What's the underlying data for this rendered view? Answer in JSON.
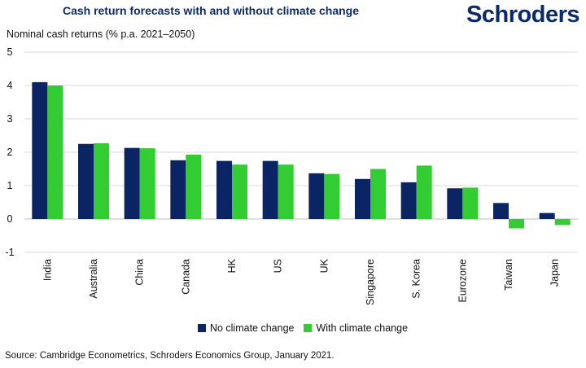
{
  "brand": "Schroders",
  "source": "Source: Cambridge Econometrics, Schroders Economics Group, January 2021.",
  "colors": {
    "no_climate": "#0b2463",
    "with_climate": "#33cc33",
    "grid": "#d9d9d9",
    "axis": "#bfbfbf"
  },
  "chart_data": {
    "type": "bar",
    "title": "Cash return forecasts with and without climate change",
    "ylabel": "Nominal cash returns (% p.a. 2021–2050)",
    "xlabel": "",
    "ylim": [
      -1,
      5
    ],
    "yticks": [
      -1,
      0,
      1,
      2,
      3,
      4,
      5
    ],
    "grid": true,
    "legend_position": "bottom",
    "categories": [
      "India",
      "Australia",
      "China",
      "Canada",
      "HK",
      "US",
      "UK",
      "Singapore",
      "S. Korea",
      "Eurozone",
      "Taiwan",
      "Japan"
    ],
    "series": [
      {
        "name": "No climate change",
        "values": [
          4.1,
          2.25,
          2.13,
          1.76,
          1.74,
          1.74,
          1.37,
          1.2,
          1.1,
          0.92,
          0.48,
          0.18
        ]
      },
      {
        "name": "With climate change",
        "values": [
          4.0,
          2.27,
          2.12,
          1.93,
          1.63,
          1.63,
          1.35,
          1.5,
          1.6,
          0.94,
          -0.28,
          -0.18
        ]
      }
    ]
  }
}
